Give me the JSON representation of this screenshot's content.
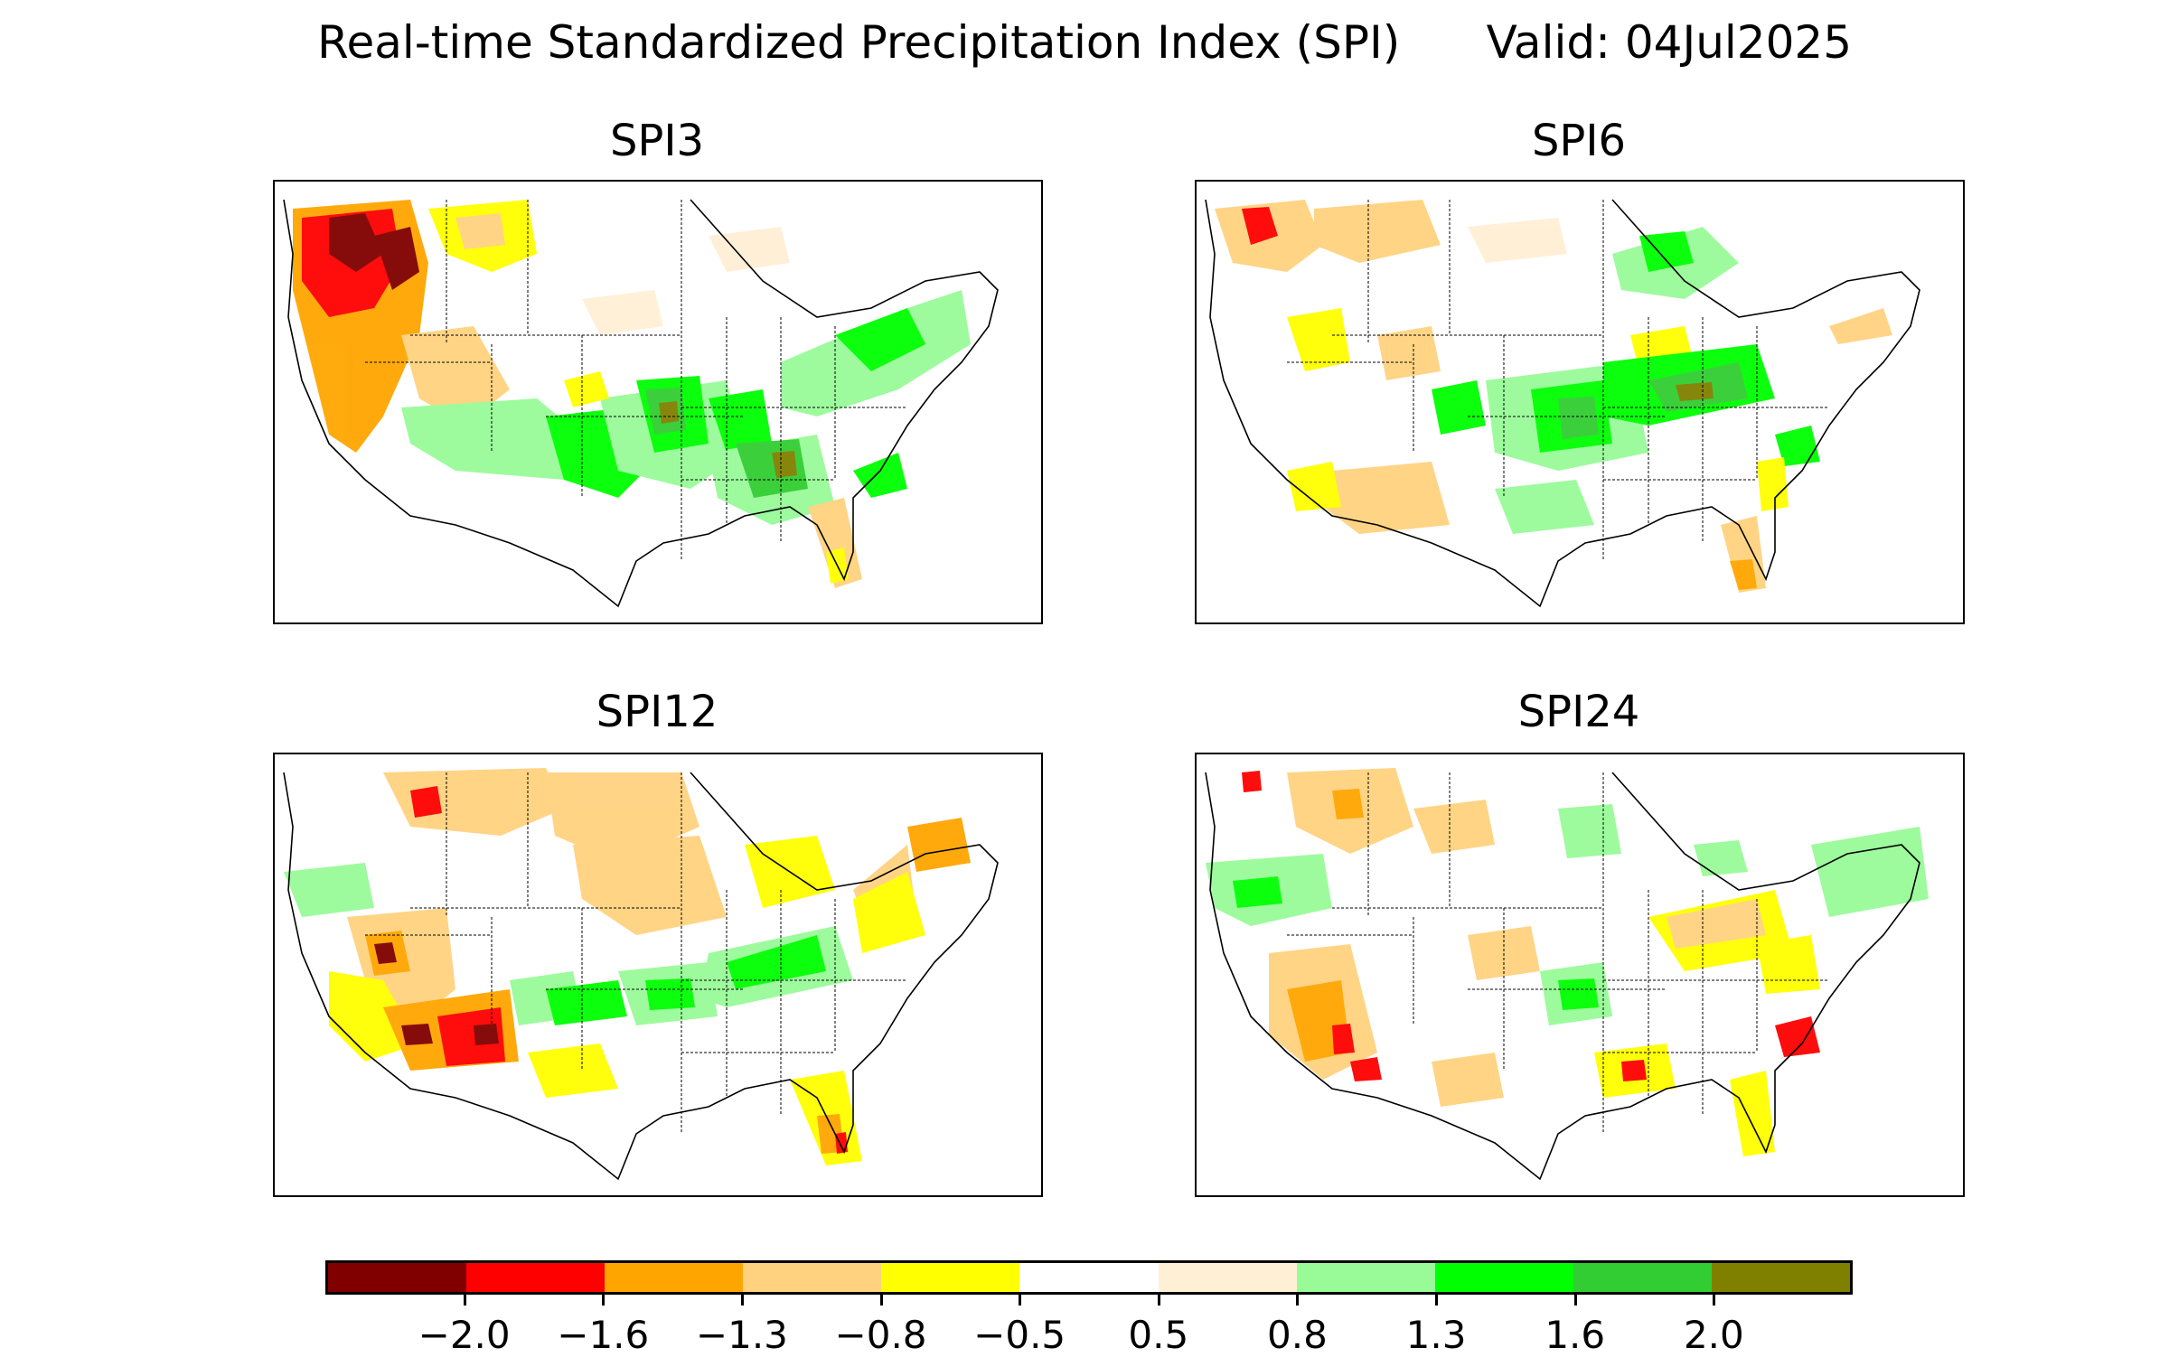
{
  "title": "Real-time Standardized Precipitation Index (SPI)      Valid: 04Jul2025",
  "panels": [
    {
      "label": "SPI3"
    },
    {
      "label": "SPI6"
    },
    {
      "label": "SPI12"
    },
    {
      "label": "SPI24"
    }
  ],
  "colorbar": {
    "colors": [
      "#800000",
      "#ff0000",
      "#ffa500",
      "#ffd27f",
      "#ffff00",
      "#ffffff",
      "#ffefd5",
      "#98fb98",
      "#00ff00",
      "#32cd32",
      "#808000"
    ],
    "tick_labels": [
      "−2.0",
      "−1.6",
      "−1.3",
      "−0.8",
      "−0.5",
      "0.5",
      "0.8",
      "1.3",
      "1.6",
      "2.0"
    ]
  }
}
